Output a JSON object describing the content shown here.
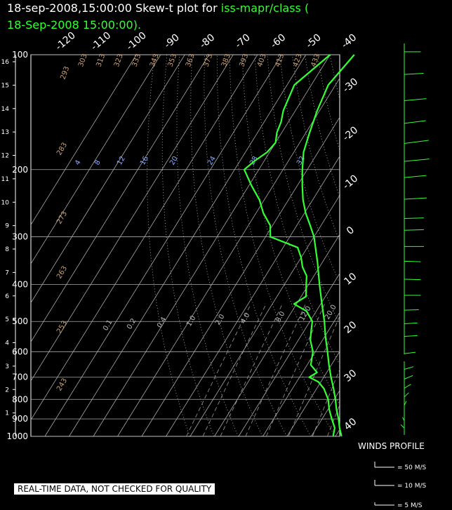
{
  "title": {
    "datetime": "18-sep-2008,15:00:00",
    "prefix": "Skew-t plot for",
    "station": "iss-mapr/class (",
    "line2": "18-Sep-2008 15:00:00)."
  },
  "disclaimer": "REAL-TIME DATA, NOT CHECKED FOR QUALITY",
  "wind_legend": {
    "title": "WINDS PROFILE",
    "items": [
      "= 50 M/S",
      "= 10 M/S",
      "= 5 M/S"
    ]
  },
  "colors": {
    "profile": "#33ff33",
    "isobar": "#aaaaaa",
    "isotherm": "#aaaaaa",
    "dry_adiabat_label": "#c8a070",
    "mixing_ratio_label": "#88aaff"
  },
  "chart_data": {
    "type": "line",
    "title": "Skew-t plot for iss-mapr/class",
    "pressure_levels": [
      100,
      200,
      300,
      400,
      500,
      600,
      700,
      800,
      900,
      1000
    ],
    "height_km_ticks": [
      1,
      2,
      3,
      4,
      5,
      6,
      7,
      8,
      9,
      10,
      11,
      12,
      13,
      14,
      15,
      16
    ],
    "isotherm_labels_top": [
      "-120",
      "-110",
      "-100",
      "-90",
      "-80",
      "-70",
      "-60",
      "-50",
      "-40"
    ],
    "isotherm_labels_right": [
      "-30",
      "-20",
      "-10",
      "0",
      "10",
      "20",
      "30",
      "40"
    ],
    "dry_adiabat_labels": [
      "293",
      "303",
      "313",
      "323",
      "333",
      "343",
      "353",
      "363",
      "373",
      "383",
      "393",
      "403",
      "413",
      "423",
      "433",
      "283",
      "273",
      "263",
      "253",
      "243"
    ],
    "mixing_ratio_labels_upper": [
      "4",
      "8",
      "12",
      "16",
      "20",
      "24",
      "28",
      "32"
    ],
    "mixing_ratio_labels_lower": [
      "0.1",
      "0.2",
      "0.4",
      "1.0",
      "2.0",
      "4.0",
      "8.0",
      "12.0",
      "20.0"
    ],
    "series": [
      {
        "name": "temperature",
        "points": [
          [
            1000,
            22.5
          ],
          [
            950,
            19.5
          ],
          [
            900,
            16.8
          ],
          [
            850,
            13.5
          ],
          [
            800,
            10.5
          ],
          [
            750,
            7.0
          ],
          [
            700,
            3.0
          ],
          [
            650,
            -1.0
          ],
          [
            600,
            -5.0
          ],
          [
            550,
            -9.5
          ],
          [
            500,
            -14.0
          ],
          [
            450,
            -19.5
          ],
          [
            400,
            -25.5
          ],
          [
            350,
            -32.0
          ],
          [
            300,
            -40.0
          ],
          [
            280,
            -44.5
          ],
          [
            260,
            -49.5
          ],
          [
            240,
            -54.0
          ],
          [
            220,
            -58.0
          ],
          [
            200,
            -62.0
          ],
          [
            180,
            -66.0
          ],
          [
            160,
            -68.5
          ],
          [
            140,
            -71.0
          ],
          [
            120,
            -73.0
          ],
          [
            100,
            -70.0
          ]
        ]
      },
      {
        "name": "dewpoint",
        "points": [
          [
            1000,
            19.0
          ],
          [
            950,
            17.5
          ],
          [
            900,
            14.0
          ],
          [
            850,
            10.5
          ],
          [
            800,
            7.5
          ],
          [
            750,
            3.0
          ],
          [
            720,
            -1.0
          ],
          [
            700,
            -6.0
          ],
          [
            680,
            -4.0
          ],
          [
            650,
            -8.5
          ],
          [
            600,
            -11.0
          ],
          [
            560,
            -15.0
          ],
          [
            530,
            -17.0
          ],
          [
            500,
            -19.0
          ],
          [
            470,
            -24.0
          ],
          [
            450,
            -31.0
          ],
          [
            430,
            -28.0
          ],
          [
            400,
            -31.0
          ],
          [
            380,
            -33.0
          ],
          [
            360,
            -37.0
          ],
          [
            340,
            -40.0
          ],
          [
            320,
            -44.0
          ],
          [
            300,
            -58.0
          ],
          [
            280,
            -61.0
          ],
          [
            260,
            -67.0
          ],
          [
            240,
            -72.0
          ],
          [
            220,
            -79.0
          ],
          [
            200,
            -86.0
          ],
          [
            190,
            -84.0
          ],
          [
            180,
            -81.0
          ],
          [
            170,
            -80.0
          ],
          [
            160,
            -82.0
          ],
          [
            150,
            -83.0
          ],
          [
            140,
            -85.0
          ],
          [
            120,
            -87.0
          ],
          [
            100,
            -80.0
          ]
        ]
      }
    ],
    "wind_profile": {
      "p_top": 100,
      "p_bottom": 1000,
      "barbs": [
        [
          105,
          270,
          15
        ],
        [
          120,
          260,
          20
        ],
        [
          140,
          255,
          25
        ],
        [
          160,
          250,
          25
        ],
        [
          180,
          250,
          30
        ],
        [
          200,
          255,
          30
        ],
        [
          220,
          255,
          25
        ],
        [
          250,
          260,
          25
        ],
        [
          280,
          265,
          20
        ],
        [
          300,
          265,
          20
        ],
        [
          330,
          270,
          20
        ],
        [
          360,
          275,
          15
        ],
        [
          400,
          275,
          15
        ],
        [
          440,
          270,
          15
        ],
        [
          480,
          265,
          12
        ],
        [
          520,
          260,
          10
        ],
        [
          560,
          260,
          10
        ],
        [
          620,
          250,
          8
        ],
        [
          680,
          230,
          8
        ],
        [
          720,
          220,
          10
        ],
        [
          760,
          210,
          10
        ],
        [
          800,
          200,
          10
        ],
        [
          840,
          190,
          8
        ],
        [
          880,
          180,
          6
        ],
        [
          920,
          170,
          5
        ],
        [
          960,
          160,
          5
        ]
      ]
    }
  }
}
